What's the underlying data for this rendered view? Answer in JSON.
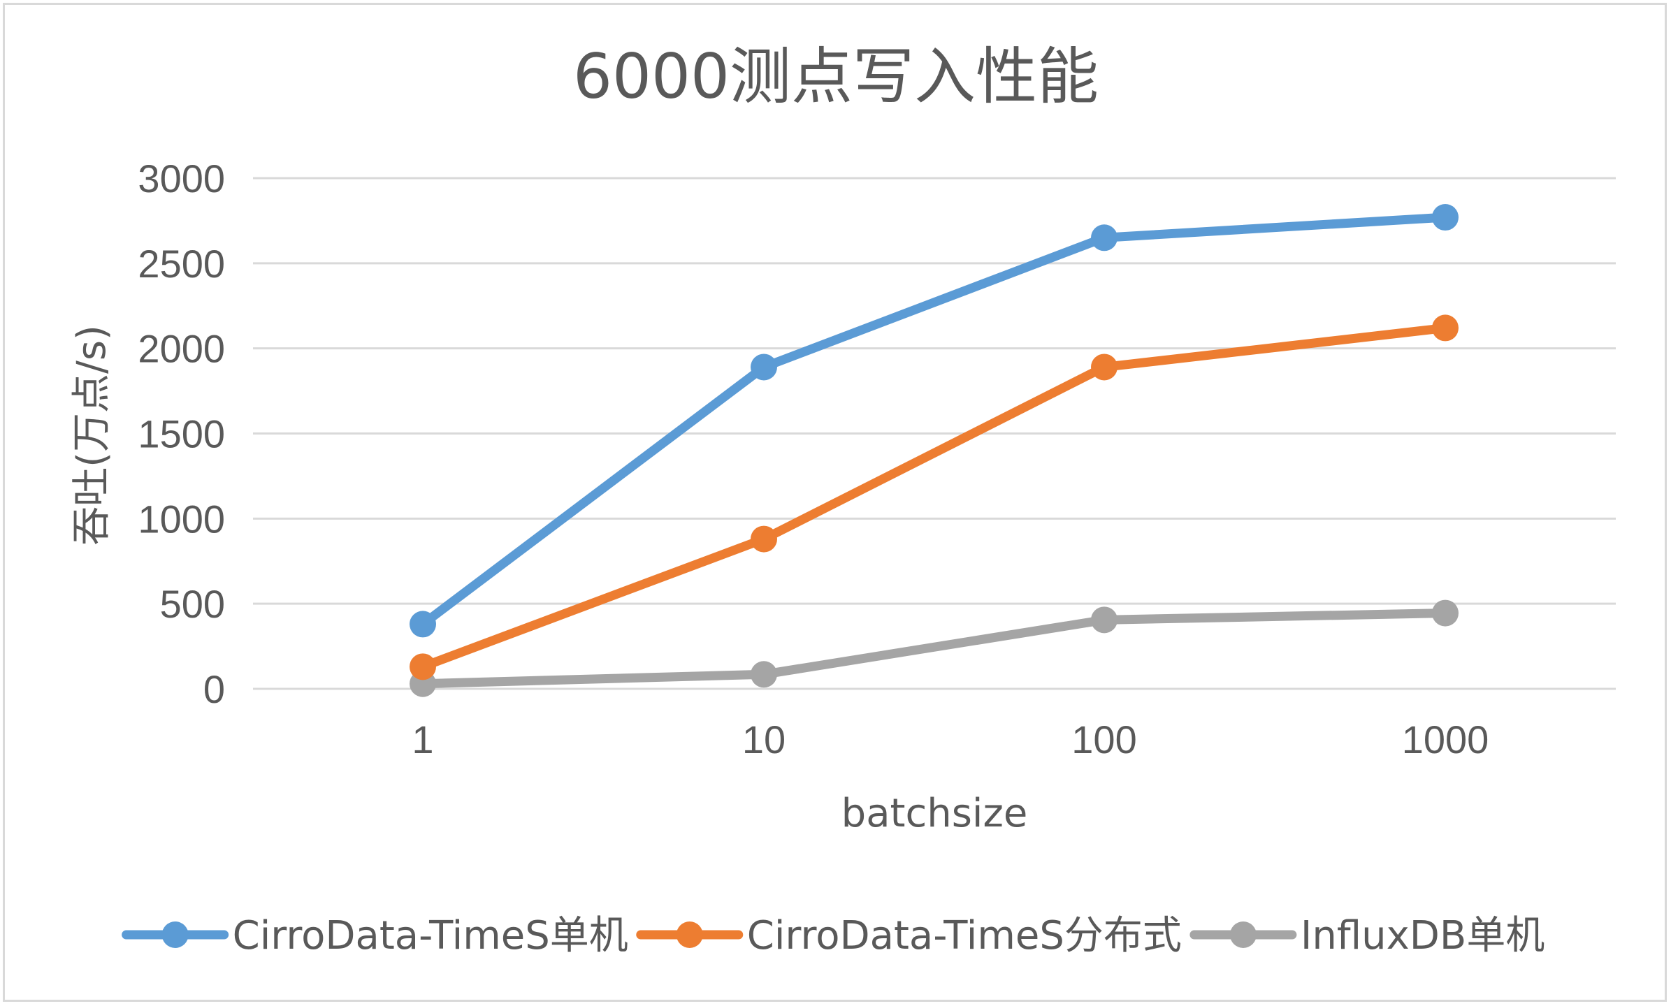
{
  "chart_data": {
    "type": "line",
    "title": "6000测点写入性能",
    "xlabel": "batchsize",
    "ylabel": "吞吐(万点/s)",
    "categories": [
      "1",
      "10",
      "100",
      "1000"
    ],
    "ylim": [
      0,
      3000
    ],
    "yticks": [
      "0",
      "500",
      "1000",
      "1500",
      "2000",
      "2500",
      "3000"
    ],
    "grid": true,
    "legend_position": "bottom",
    "series": [
      {
        "name": "CirroData-TimeS单机",
        "color": "#5b9bd5",
        "values": [
          380,
          1890,
          2650,
          2770
        ]
      },
      {
        "name": "CirroData-TimeS分布式",
        "color": "#ed7d31",
        "values": [
          130,
          880,
          1890,
          2120
        ]
      },
      {
        "name": "InfluxDB单机",
        "color": "#a5a5a5",
        "values": [
          30,
          85,
          405,
          445
        ]
      }
    ]
  }
}
